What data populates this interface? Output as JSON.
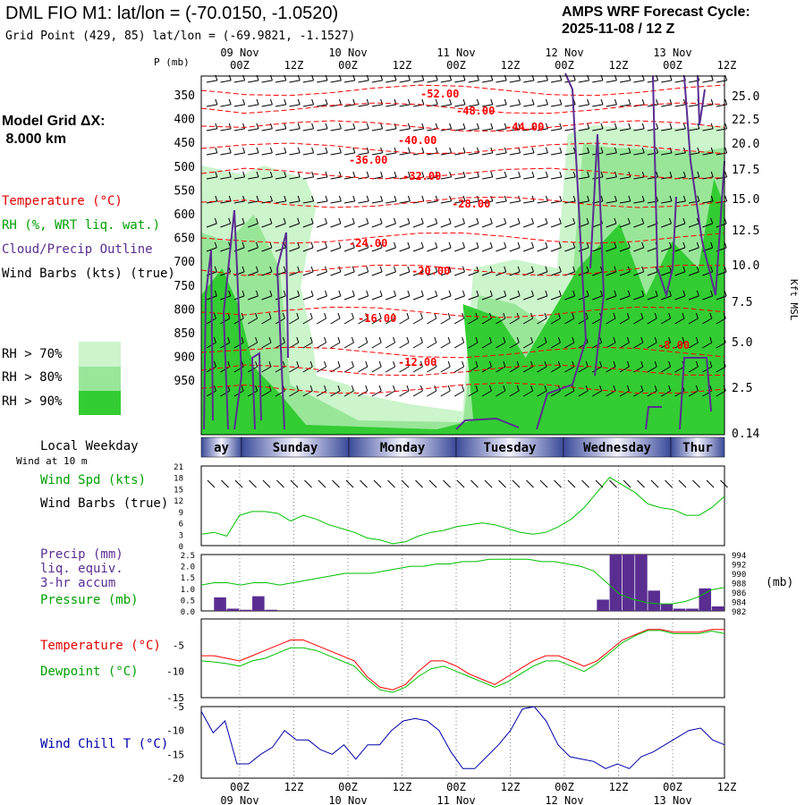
{
  "header": {
    "title": "DML FIO M1:  lat/lon = (-70.0150, -1.0520)",
    "grid_point": "Grid Point (429, 85) lat/lon = (-69.9821, -1.1527)",
    "cycle_line1": "AMPS WRF Forecast Cycle:",
    "cycle_line2": "2025-11-08 / 12  Z",
    "model_grid_line1": "Model Grid ΔX:",
    "model_grid_line2": " 8.000 km"
  },
  "time_axis": {
    "tick_labels": [
      "00Z",
      "12Z",
      "00Z",
      "12Z",
      "00Z",
      "12Z",
      "00Z",
      "12Z",
      "00Z",
      "12Z"
    ],
    "date_labels": [
      "09 Nov",
      "10 Nov",
      "11 Nov",
      "12 Nov",
      "13 Nov"
    ]
  },
  "weekday_bar": {
    "title": "Local Weekday",
    "days": [
      "ay",
      "Sunday",
      "Monday",
      "Tuesday",
      "Wednesday",
      "Thur"
    ]
  },
  "colors": {
    "temperature": "#ff0000",
    "dewpoint": "#00c000",
    "rh70": "#ccf5cc",
    "rh80": "#99e699",
    "rh90": "#33cc33",
    "cloud": "#5a2d91",
    "precip_bar": "#5a2d91",
    "windchill": "#0000aa"
  },
  "chart_data": [
    {
      "type": "heatmap",
      "panel": "cross-section",
      "ylabel_left": "P (mb)",
      "yticks_left": [
        350,
        400,
        450,
        500,
        550,
        600,
        650,
        700,
        750,
        800,
        850,
        900,
        950
      ],
      "ylabel_right": "Kft MSL",
      "yticks_right": [
        "25.0",
        "22.5",
        "20.0",
        "17.5",
        "15.0",
        "12.5",
        "10.0",
        "7.5",
        "5.0",
        "2.5",
        "0.14"
      ],
      "legend": {
        "temperature": "Temperature (°C)",
        "rh": "RH (%, WRT liq. wat.)",
        "cloud": "Cloud/Precip Outline",
        "wind": "Wind Barbs (kts) (true)",
        "rh70": "RH > 70%",
        "rh80": "RH > 80%",
        "rh90": "RH > 90%"
      },
      "contour_labels": [
        "-52.00",
        "-48.00",
        "-44.00",
        "-40.00",
        "-36.00",
        "-32.00",
        "-28.00",
        "-24.00",
        "-20.00",
        "-16.00",
        "-12.00",
        "-8.00"
      ]
    },
    {
      "type": "line",
      "panel": "wind-speed",
      "subtitle": "Wind at 10 m",
      "series": [
        {
          "name": "Wind Spd (kts)",
          "values": [
            3,
            3.5,
            2.5,
            8,
            9,
            9,
            8.5,
            6.5,
            8,
            7,
            5.5,
            4.5,
            3.5,
            2,
            1.5,
            0.5,
            1,
            2.5,
            3.5,
            4,
            5,
            5.5,
            6,
            5.5,
            4.5,
            3.5,
            3,
            3.5,
            5,
            7,
            10,
            14,
            18,
            16,
            14,
            11,
            10,
            9.5,
            8,
            8,
            10,
            13
          ]
        }
      ],
      "label_barbs": "Wind Barbs (true)",
      "yticks": [
        0,
        3,
        6,
        9,
        12,
        15,
        18,
        21
      ],
      "ylim": [
        0,
        21
      ]
    },
    {
      "type": "bar",
      "panel": "precip-pressure",
      "series": [
        {
          "name": "Precip (mm)",
          "label_lines": [
            "Precip (mm)",
            "liq. equiv.",
            "3-hr accum"
          ],
          "values": [
            0,
            0.6,
            0.1,
            0.05,
            0.65,
            0.05,
            0,
            0,
            0,
            0,
            0,
            0,
            0,
            0,
            0,
            0,
            0,
            0,
            0,
            0,
            0,
            0,
            0,
            0,
            0,
            0,
            0,
            0,
            0,
            0,
            0,
            0.5,
            2.5,
            2.5,
            2.5,
            0.9,
            0.3,
            0.1,
            0.1,
            1.0,
            0.2
          ]
        },
        {
          "name": "Pressure (mb)",
          "values": [
            987.5,
            988,
            988,
            987.5,
            988,
            988,
            987.5,
            988,
            988.5,
            989,
            989.5,
            990,
            990,
            990,
            990.5,
            991,
            991.5,
            991.5,
            992,
            992,
            992.5,
            992.5,
            993,
            993,
            993,
            993,
            992.5,
            992.5,
            992,
            991.5,
            990.5,
            988,
            985.5,
            984.5,
            983.8,
            983.5,
            983.5,
            984,
            985,
            986.5,
            987
          ]
        }
      ],
      "ylabel_right": "(mb)",
      "yticks_left": [
        "0.0",
        "0.5",
        "1.0",
        "1.5",
        "2.0",
        "2.5"
      ],
      "yticks_right": [
        982,
        984,
        986,
        988,
        990,
        992,
        994
      ],
      "ylim_left": [
        0,
        2.5
      ],
      "ylim_right": [
        982,
        994
      ]
    },
    {
      "type": "line",
      "panel": "temperature",
      "series": [
        {
          "name": "Temperature (°C)",
          "values": [
            -7,
            -7,
            -7.5,
            -8,
            -7,
            -6,
            -5,
            -4,
            -4,
            -5,
            -6,
            -7,
            -8,
            -11,
            -13,
            -13.5,
            -12.5,
            -10,
            -8,
            -8,
            -9,
            -10.5,
            -11.5,
            -12.5,
            -11,
            -9.5,
            -8,
            -7,
            -7,
            -8,
            -9,
            -8,
            -6,
            -4,
            -3,
            -2,
            -2,
            -2.5,
            -2.5,
            -2.5,
            -2,
            -2
          ]
        },
        {
          "name": "Dewpoint (°C)",
          "values": [
            -8,
            -8.2,
            -8.5,
            -9,
            -8,
            -7.5,
            -6.5,
            -5.5,
            -5.5,
            -6,
            -7,
            -8,
            -9,
            -11.5,
            -13.5,
            -14,
            -13,
            -11,
            -9.5,
            -9,
            -10,
            -11,
            -12,
            -13,
            -12,
            -10.5,
            -9,
            -8,
            -8,
            -9,
            -10,
            -8.5,
            -6.5,
            -4.5,
            -3.2,
            -2.2,
            -2.2,
            -2.8,
            -2.8,
            -2.8,
            -2.3,
            -2.8
          ]
        }
      ],
      "yticks": [
        -15,
        -10,
        -5
      ],
      "ylim": [
        -15,
        0
      ]
    },
    {
      "type": "line",
      "panel": "wind-chill",
      "series": [
        {
          "name": "Wind Chill T (°C)",
          "values": [
            -6,
            -10.5,
            -8,
            -17,
            -17,
            -15,
            -13.5,
            -10,
            -12,
            -12,
            -14,
            -15,
            -13,
            -16,
            -13,
            -13,
            -10,
            -8,
            -7.5,
            -8,
            -10,
            -14.5,
            -18,
            -18,
            -15.5,
            -13,
            -10,
            -5.5,
            -5,
            -8,
            -13,
            -15.5,
            -16,
            -16.5,
            -18,
            -17,
            -18,
            -15.5,
            -14.5,
            -13,
            -11.5,
            -10,
            -9.5,
            -12,
            -13
          ]
        }
      ],
      "yticks": [
        -20,
        -15,
        -10,
        -5
      ],
      "ylim": [
        -20,
        -5
      ]
    }
  ]
}
